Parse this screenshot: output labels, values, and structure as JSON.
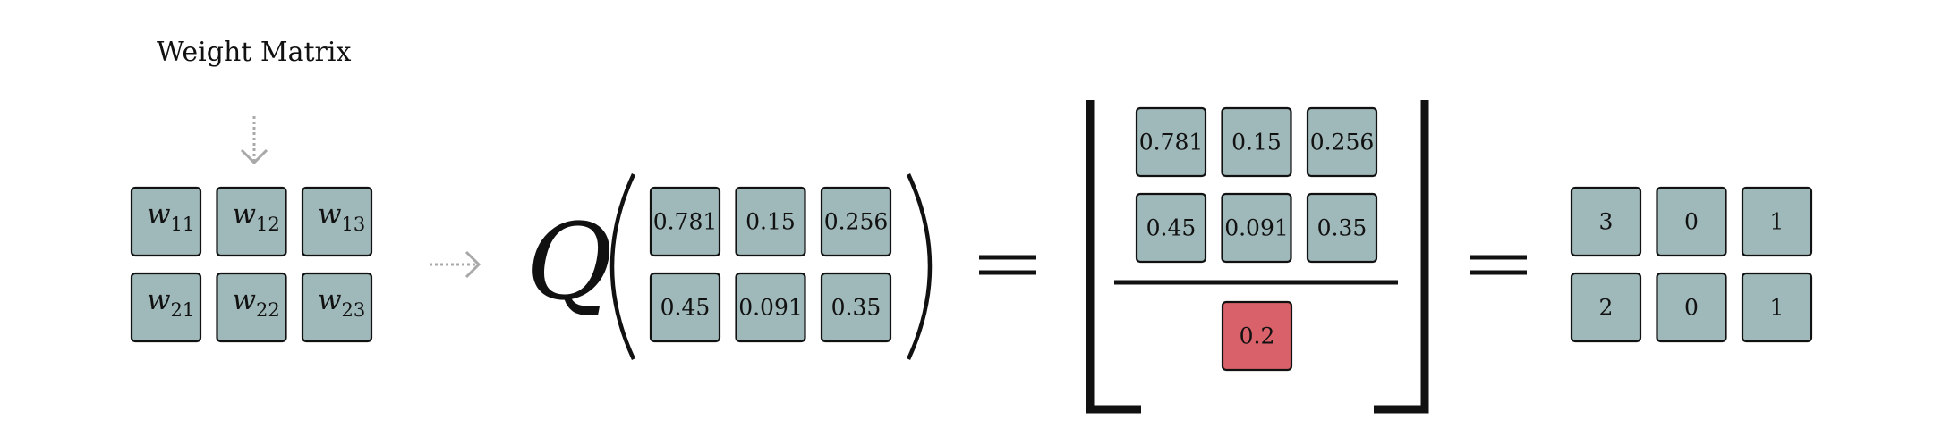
{
  "weight_matrix": {
    "title": "Weight Matrix",
    "symbol": "w",
    "rows": [
      [
        "11",
        "12",
        "13"
      ],
      [
        "21",
        "22",
        "23"
      ]
    ]
  },
  "quantizer": {
    "symbol": "Q",
    "input_rows": [
      [
        "0.781",
        "0.15",
        "0.256"
      ],
      [
        "0.45",
        "0.091",
        "0.35"
      ]
    ]
  },
  "floor_division": {
    "numerator_rows": [
      [
        "0.781",
        "0.15",
        "0.256"
      ],
      [
        "0.45",
        "0.091",
        "0.35"
      ]
    ],
    "denominator": "0.2"
  },
  "result": {
    "rows": [
      [
        "3",
        "0",
        "1"
      ],
      [
        "2",
        "0",
        "1"
      ]
    ]
  },
  "colors": {
    "cell_fill": "#9fb8b9",
    "highlight_fill": "#d9626a",
    "arrow_gray": "#a9a9a9"
  },
  "icons": [
    "down-arrow-icon",
    "right-arrow-icon"
  ]
}
